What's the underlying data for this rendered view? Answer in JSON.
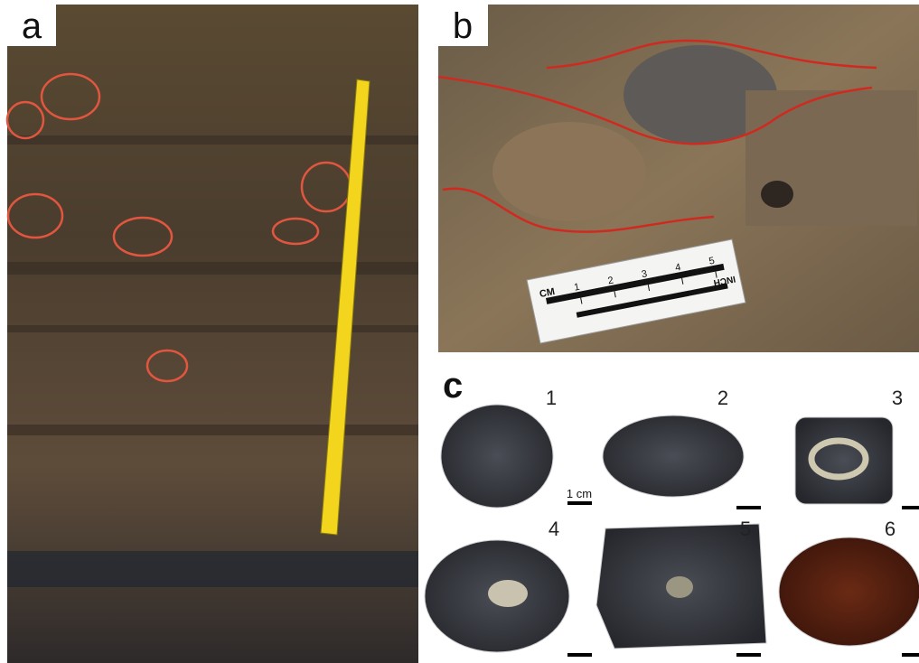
{
  "panels": {
    "a": {
      "label": "a"
    },
    "b": {
      "label": "b",
      "ruler": {
        "unit_top": "CM",
        "marks": [
          "1",
          "2",
          "3",
          "4",
          "5"
        ],
        "unit_bottom": "INCH"
      }
    },
    "c": {
      "label": "c",
      "scale": "1 cm",
      "specimens": [
        "1",
        "2",
        "3",
        "4",
        "5",
        "6"
      ]
    }
  }
}
